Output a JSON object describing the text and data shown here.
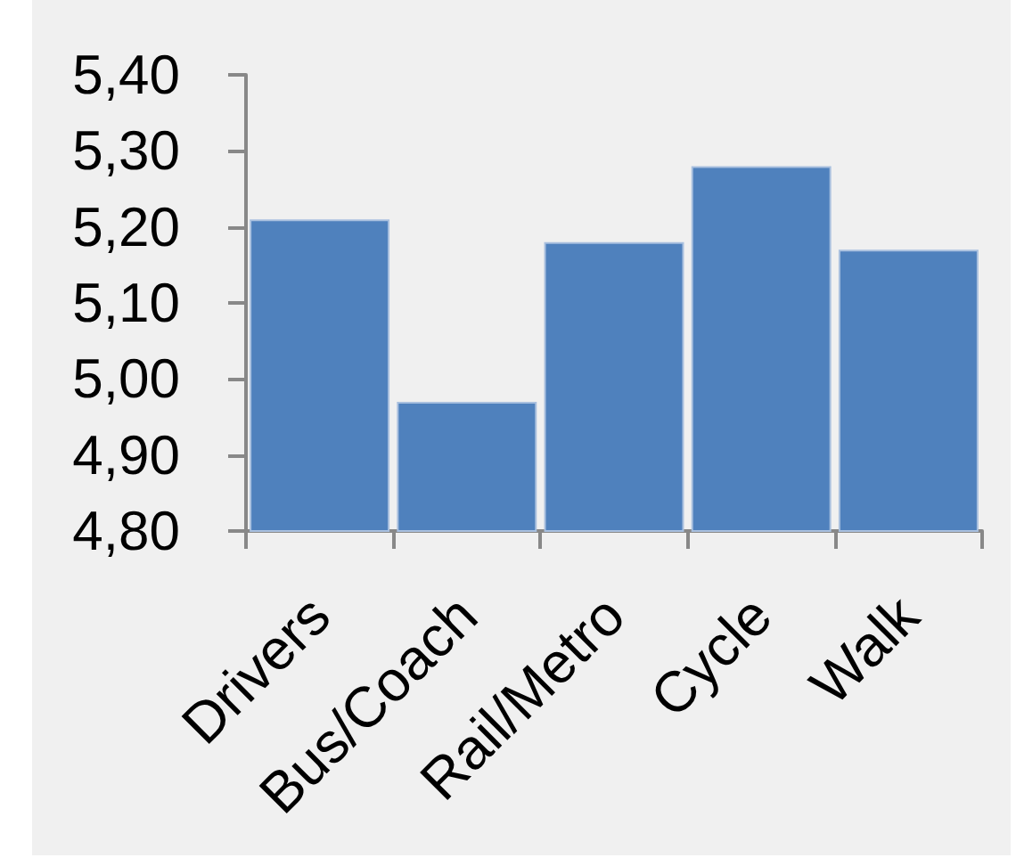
{
  "chart_data": {
    "type": "bar",
    "categories": [
      "Drivers",
      "Bus/Coach",
      "Rail/Metro",
      "Cycle",
      "Walk"
    ],
    "values": [
      5.21,
      4.97,
      5.18,
      5.28,
      5.17
    ],
    "color": "#4f81bd",
    "ylim": [
      4.8,
      5.4
    ],
    "yticks": [
      {
        "value": 4.8,
        "label": "4,80"
      },
      {
        "value": 4.9,
        "label": "4,90"
      },
      {
        "value": 5.0,
        "label": "5,00"
      },
      {
        "value": 5.1,
        "label": "5,10"
      },
      {
        "value": 5.2,
        "label": "5,20"
      },
      {
        "value": 5.3,
        "label": "5,30"
      },
      {
        "value": 5.4,
        "label": "5,40"
      }
    ],
    "grid": false
  }
}
